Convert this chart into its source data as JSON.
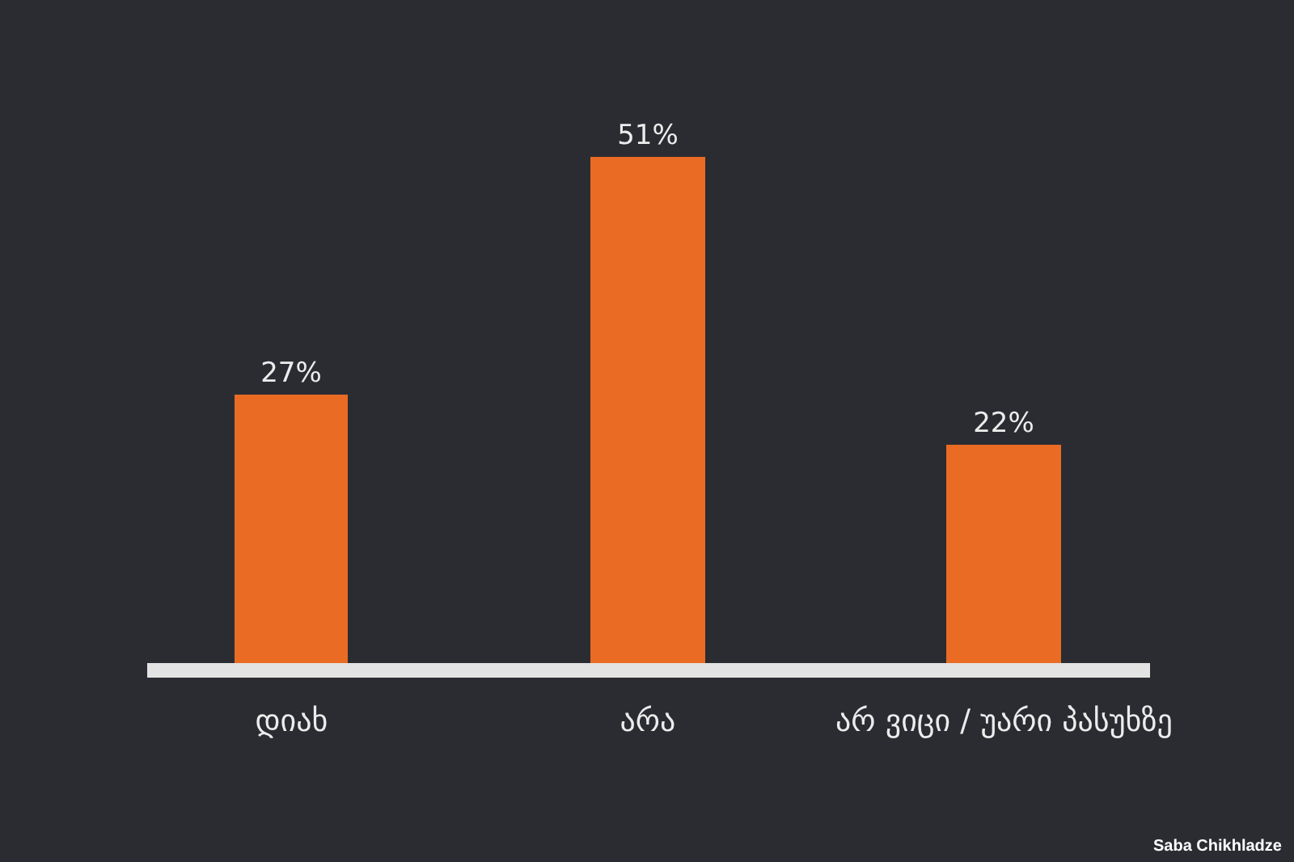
{
  "chart_data": {
    "type": "bar",
    "categories": [
      "დიახ",
      "არა",
      "არ ვიცი / უარი პასუხზე"
    ],
    "values": [
      27,
      51,
      22
    ],
    "value_labels": [
      "27%",
      "51%",
      "22%"
    ],
    "color": "#e96b24",
    "tick_labels": "x",
    "annotations": [
      "Saba Chikhladze"
    ]
  }
}
